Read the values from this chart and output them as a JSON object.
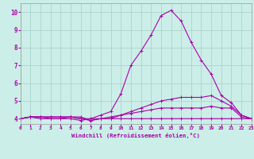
{
  "xlabel": "Windchill (Refroidissement éolien,°C)",
  "background_color": "#cceee8",
  "grid_color": "#aad4cc",
  "line_color": "#aa00aa",
  "x_min": 0,
  "x_max": 23,
  "y_min": 3.7,
  "y_max": 10.5,
  "yticks": [
    4,
    5,
    6,
    7,
    8,
    9,
    10
  ],
  "xticks": [
    0,
    1,
    2,
    3,
    4,
    5,
    6,
    7,
    8,
    9,
    10,
    11,
    12,
    13,
    14,
    15,
    16,
    17,
    18,
    19,
    20,
    21,
    22,
    23
  ],
  "lines": [
    {
      "x": [
        0,
        1,
        2,
        3,
        4,
        5,
        6,
        7,
        8,
        9,
        10,
        11,
        12,
        13,
        14,
        15,
        16,
        17,
        18,
        19,
        20,
        21,
        22,
        23
      ],
      "y": [
        4.0,
        4.1,
        4.0,
        4.0,
        4.0,
        4.0,
        3.9,
        4.0,
        4.0,
        4.0,
        4.0,
        4.0,
        4.0,
        4.0,
        4.0,
        4.0,
        4.0,
        4.0,
        4.0,
        4.0,
        4.0,
        4.0,
        4.0,
        4.0
      ]
    },
    {
      "x": [
        0,
        1,
        2,
        3,
        4,
        5,
        6,
        7,
        8,
        9,
        10,
        11,
        12,
        13,
        14,
        15,
        16,
        17,
        18,
        19,
        20,
        21,
        22,
        23
      ],
      "y": [
        4.0,
        4.1,
        4.1,
        4.0,
        4.0,
        4.1,
        4.0,
        3.9,
        4.0,
        4.0,
        4.2,
        4.3,
        4.4,
        4.5,
        4.6,
        4.6,
        4.6,
        4.6,
        4.6,
        4.7,
        4.6,
        4.6,
        4.1,
        4.0
      ]
    },
    {
      "x": [
        0,
        1,
        2,
        3,
        4,
        5,
        6,
        7,
        8,
        9,
        10,
        11,
        12,
        13,
        14,
        15,
        16,
        17,
        18,
        19,
        20,
        21,
        22,
        23
      ],
      "y": [
        4.0,
        4.1,
        4.1,
        4.1,
        4.1,
        4.1,
        4.1,
        3.9,
        4.0,
        4.1,
        4.2,
        4.4,
        4.6,
        4.8,
        5.0,
        5.1,
        5.2,
        5.2,
        5.2,
        5.3,
        5.0,
        4.7,
        4.2,
        4.0
      ]
    },
    {
      "x": [
        0,
        1,
        2,
        3,
        4,
        5,
        6,
        7,
        8,
        9,
        10,
        11,
        12,
        13,
        14,
        15,
        16,
        17,
        18,
        19,
        20,
        21,
        22,
        23
      ],
      "y": [
        4.0,
        4.1,
        4.1,
        4.1,
        4.1,
        4.1,
        4.0,
        4.0,
        4.2,
        4.4,
        5.4,
        7.0,
        7.8,
        8.7,
        9.8,
        10.1,
        9.5,
        8.3,
        7.3,
        6.5,
        5.3,
        4.9,
        4.2,
        4.0
      ]
    }
  ]
}
